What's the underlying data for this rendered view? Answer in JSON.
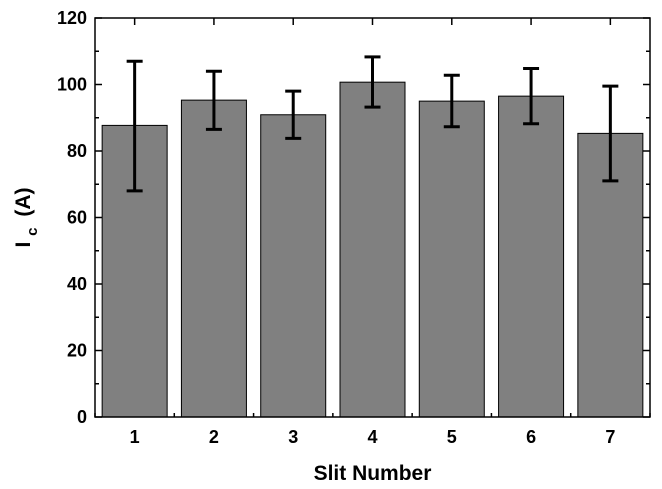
{
  "chart_data": {
    "type": "bar",
    "categories": [
      "1",
      "2",
      "3",
      "4",
      "5",
      "6",
      "7"
    ],
    "series": [
      {
        "values": [
          87.7,
          95.3,
          90.9,
          100.7,
          95.0,
          96.5,
          85.3
        ],
        "error_low": [
          68.0,
          86.5,
          83.8,
          93.2,
          87.3,
          88.2,
          71.0
        ],
        "error_high": [
          107.0,
          104.0,
          98.0,
          108.3,
          102.8,
          104.8,
          99.5
        ]
      }
    ],
    "xlabel": "Slit Number",
    "ylabel_main": "I",
    "ylabel_sub": "c",
    "ylabel_unit": "(A)",
    "ylim": [
      0,
      120
    ],
    "yticks": [
      "0",
      "20",
      "40",
      "60",
      "80",
      "100",
      "120"
    ],
    "grid": false,
    "bar_color": "#808080",
    "legend": "none"
  }
}
